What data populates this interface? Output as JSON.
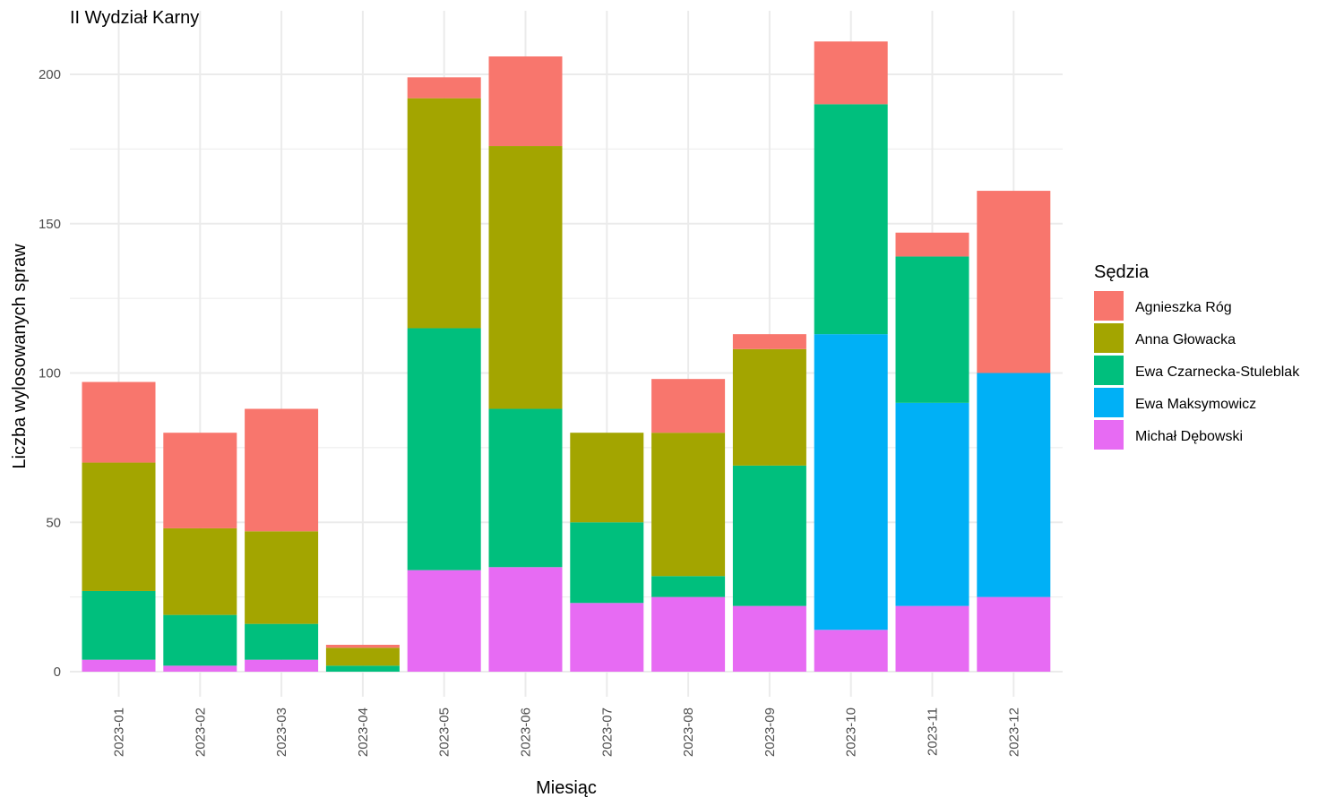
{
  "chart_data": {
    "type": "bar",
    "stacked": true,
    "title": "II Wydział Karny",
    "xlabel": "Miesiąc",
    "ylabel": "Liczba wylosowanych spraw",
    "categories": [
      "2023-01",
      "2023-02",
      "2023-03",
      "2023-04",
      "2023-05",
      "2023-06",
      "2023-07",
      "2023-08",
      "2023-09",
      "2023-10",
      "2023-11",
      "2023-12"
    ],
    "ylim": [
      0,
      215
    ],
    "yticks": [
      0,
      50,
      100,
      150,
      200
    ],
    "grid": true,
    "legend": {
      "title": "Sędzia",
      "position": "right"
    },
    "series": [
      {
        "name": "Michał Dębowski",
        "color": "#E76BF3",
        "values": [
          4,
          2,
          4,
          0,
          34,
          35,
          23,
          25,
          22,
          14,
          22,
          25
        ]
      },
      {
        "name": "Ewa Maksymowicz",
        "color": "#00B0F6",
        "values": [
          0,
          0,
          0,
          0,
          0,
          0,
          0,
          0,
          0,
          99,
          68,
          75
        ]
      },
      {
        "name": "Ewa Czarnecka-Stuleblak",
        "color": "#00BF7D",
        "values": [
          23,
          17,
          12,
          2,
          81,
          53,
          27,
          7,
          47,
          77,
          49,
          0
        ]
      },
      {
        "name": "Anna Głowacka",
        "color": "#A3A500",
        "values": [
          43,
          29,
          31,
          6,
          77,
          88,
          30,
          48,
          39,
          0,
          0,
          0
        ]
      },
      {
        "name": "Agnieszka Róg",
        "color": "#F8766D",
        "values": [
          27,
          32,
          41,
          1,
          7,
          30,
          0,
          18,
          5,
          21,
          8,
          61
        ]
      }
    ],
    "legend_order": [
      "Agnieszka Róg",
      "Anna Głowacka",
      "Ewa Czarnecka-Stuleblak",
      "Ewa Maksymowicz",
      "Michał Dębowski"
    ]
  }
}
